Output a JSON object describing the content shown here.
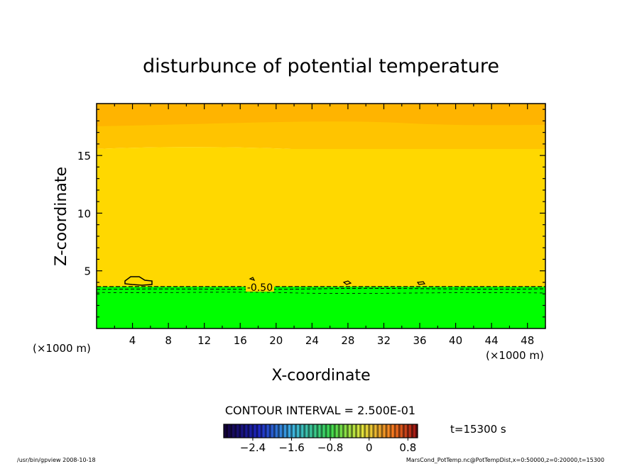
{
  "chart_data": {
    "type": "heatmap",
    "title": "disturbunce of potential temperature",
    "xlabel": "X-coordinate",
    "ylabel": "Z-coordinate",
    "x_unit_left": "(×1000 m)",
    "x_unit_right": "(×1000 m)",
    "xlim": [
      0,
      50
    ],
    "ylim": [
      0,
      19.5
    ],
    "x_ticks": [
      4,
      8,
      12,
      16,
      20,
      24,
      28,
      32,
      36,
      40,
      44,
      48
    ],
    "y_ticks": [
      5,
      10,
      15
    ],
    "contour_label": "-0.50",
    "contour_interval_text": "CONTOUR INTERVAL = 2.500E-01",
    "time_label": "t=15300 s",
    "colorbar_ticks": [
      "−2.4",
      "−1.6",
      "−0.8",
      "0",
      "0.8"
    ],
    "colorbar_range": [
      -3.0,
      1.0
    ],
    "footer_left": "/usr/bin/gpview 2008-10-18",
    "footer_right": "MarsCond_PotTemp.nc@PotTempDist,x=0:50000,z=0:20000,t=15300",
    "bands": [
      {
        "z_top": 19.5,
        "z_bottom": 18.0,
        "color": "#ffb400"
      },
      {
        "z_top": 18.0,
        "z_bottom": 15.6,
        "color": "#ffc400"
      },
      {
        "z_top": 15.6,
        "z_bottom": 3.7,
        "color": "#ffd800"
      },
      {
        "z_top": 3.7,
        "z_bottom": 0,
        "color": "#00ff00"
      }
    ]
  }
}
